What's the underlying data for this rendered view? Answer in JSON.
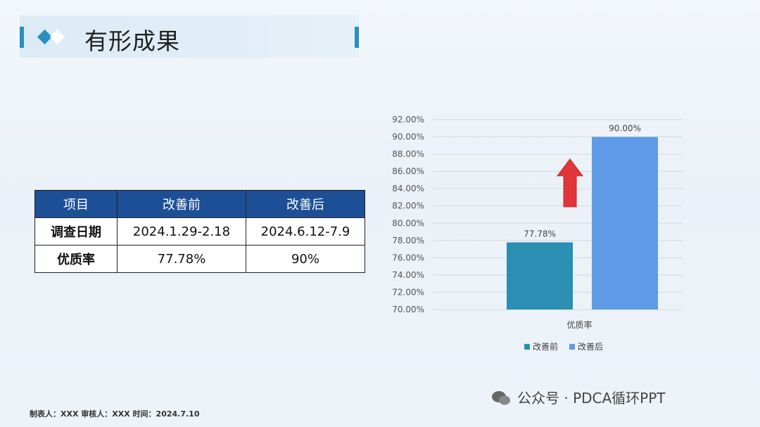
{
  "title": "有形成果",
  "table": {
    "headers": [
      "项目",
      "改善前",
      "改善后"
    ],
    "rows": [
      [
        "调查日期",
        "2024.1.29-2.18",
        "2024.6.12-7.9"
      ],
      [
        "优质率",
        "77.78%",
        "90%"
      ]
    ]
  },
  "chart_data": {
    "type": "bar",
    "categories": [
      "优质率"
    ],
    "series": [
      {
        "name": "改善前",
        "values": [
          77.78
        ],
        "label": "77.78%",
        "color": "#2a8fb3"
      },
      {
        "name": "改善后",
        "values": [
          90.0
        ],
        "label": "90.00%",
        "color": "#5f9be6"
      }
    ],
    "ylim": [
      70,
      92
    ],
    "yticks": [
      "70.00%",
      "72.00%",
      "74.00%",
      "76.00%",
      "78.00%",
      "80.00%",
      "82.00%",
      "84.00%",
      "86.00%",
      "88.00%",
      "90.00%",
      "92.00%"
    ],
    "grid": true,
    "legend": "bottom",
    "annotation": "red-up-arrow"
  },
  "footer": "制表人：XXX  审核人：XXX  时间：2024.7.10",
  "watermark": "公众号 · PDCA循环PPT",
  "icons": [
    "diamond-icon",
    "up-arrow-icon",
    "wechat-icon"
  ]
}
